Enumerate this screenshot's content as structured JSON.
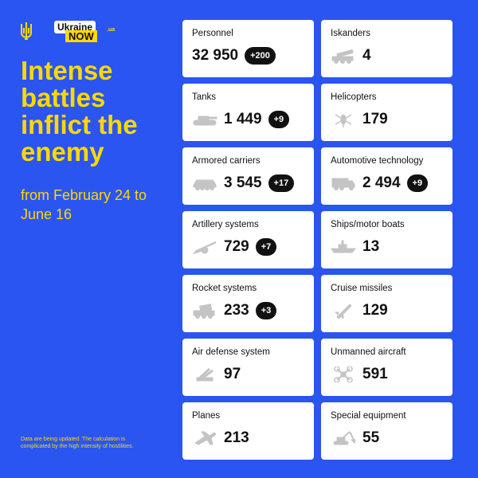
{
  "brand": {
    "ukraine": "Ukraine",
    "now": "NOW",
    "ua": ".ua"
  },
  "headline": "Intense battles inflict the enemy",
  "period": "from February 24 to June 16",
  "footnote": "Data are being updated. The calculation is complicated by the high intensity of hostilities.",
  "colors": {
    "background": "#2a55f0",
    "accent": "#ffd800",
    "card": "#ffffff",
    "badge": "#111111",
    "icon": "#c4c4c4"
  },
  "stats": [
    {
      "label": "Personnel",
      "value": "32 950",
      "delta": "+200",
      "icon": "none"
    },
    {
      "label": "Iskanders",
      "value": "4",
      "delta": "",
      "icon": "missile-launcher-icon"
    },
    {
      "label": "Tanks",
      "value": "1 449",
      "delta": "+9",
      "icon": "tank-icon"
    },
    {
      "label": "Helicopters",
      "value": "179",
      "delta": "",
      "icon": "helicopter-icon"
    },
    {
      "label": "Armored carriers",
      "value": "3 545",
      "delta": "+17",
      "icon": "armored-carrier-icon"
    },
    {
      "label": "Automotive technology",
      "value": "2 494",
      "delta": "+9",
      "icon": "truck-icon"
    },
    {
      "label": "Artillery systems",
      "value": "729",
      "delta": "+7",
      "icon": "artillery-icon"
    },
    {
      "label": "Ships/motor boats",
      "value": "13",
      "delta": "",
      "icon": "ship-icon"
    },
    {
      "label": "Rocket systems",
      "value": "233",
      "delta": "+3",
      "icon": "rocket-system-icon"
    },
    {
      "label": "Cruise missiles",
      "value": "129",
      "delta": "",
      "icon": "cruise-missile-icon"
    },
    {
      "label": "Air defense system",
      "value": "97",
      "delta": "",
      "icon": "air-defense-icon"
    },
    {
      "label": "Unmanned aircraft",
      "value": "591",
      "delta": "",
      "icon": "drone-icon"
    },
    {
      "label": "Planes",
      "value": "213",
      "delta": "",
      "icon": "plane-icon"
    },
    {
      "label": "Special equipment",
      "value": "55",
      "delta": "",
      "icon": "excavator-icon"
    }
  ]
}
